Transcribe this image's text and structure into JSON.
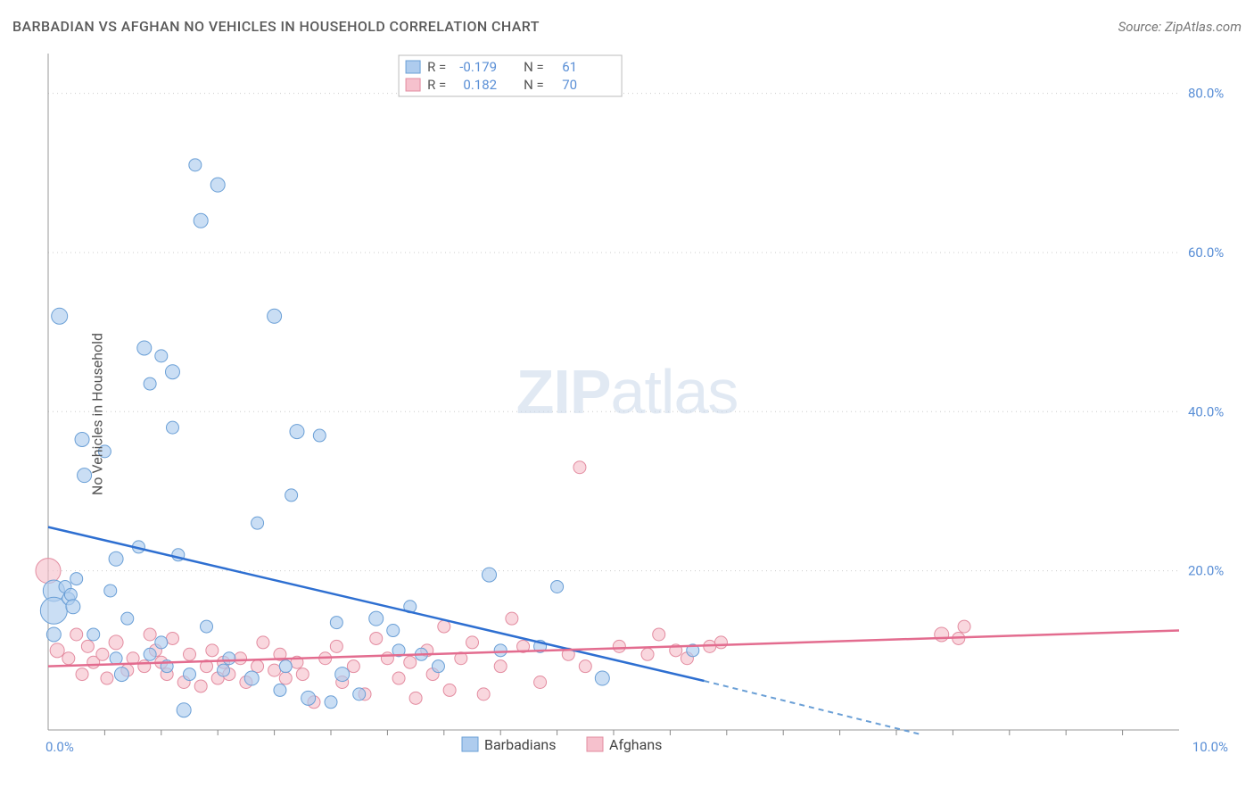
{
  "title": "BARBADIAN VS AFGHAN NO VEHICLES IN HOUSEHOLD CORRELATION CHART",
  "source": "Source: ZipAtlas.com",
  "ylabel": "No Vehicles in Household",
  "watermark_bold": "ZIP",
  "watermark_light": "atlas",
  "chart": {
    "type": "scatter",
    "background_color": "#ffffff",
    "plot_border_color": "#999999",
    "grid_color": "#cccccc",
    "tick_label_color": "#5a8fd6",
    "tick_fontsize": 15,
    "title_fontsize": 16,
    "ylabel_fontsize": 16,
    "xlim": [
      0,
      10
    ],
    "ylim": [
      0,
      85
    ],
    "ytick_values": [
      20,
      40,
      60,
      80
    ],
    "ytick_labels": [
      "20.0%",
      "40.0%",
      "60.0%",
      "80.0%"
    ],
    "x_corner_labels": [
      "0.0%",
      "10.0%"
    ],
    "xtick_minor": [
      0.5,
      1.0,
      1.5,
      2.0,
      2.5,
      3.0,
      3.5,
      4.0,
      4.5,
      5.0,
      5.5,
      6.0,
      6.5,
      7.0,
      7.5,
      8.0,
      8.5,
      9.0,
      9.5
    ],
    "series": [
      {
        "key": "barbadians",
        "label": "Barbadians",
        "marker_fill": "#aeccee",
        "marker_stroke": "#6a9fd6",
        "trend_color": "#2e6fd1",
        "trend": {
          "x1": 0,
          "y1": 25.5,
          "x2": 6.0,
          "y2": 5.5,
          "x_solid_end": 5.8,
          "x_dash_end": 7.7,
          "y_dash_end": -0.5
        },
        "R": "-0.179",
        "N": "61",
        "points": [
          {
            "x": 0.05,
            "y": 17.5,
            "r": 12
          },
          {
            "x": 0.05,
            "y": 15.0,
            "r": 15
          },
          {
            "x": 0.05,
            "y": 12.0,
            "r": 8
          },
          {
            "x": 0.1,
            "y": 52.0,
            "r": 9
          },
          {
            "x": 0.15,
            "y": 18.0,
            "r": 7
          },
          {
            "x": 0.18,
            "y": 16.5,
            "r": 7
          },
          {
            "x": 0.2,
            "y": 17.0,
            "r": 7
          },
          {
            "x": 0.22,
            "y": 15.5,
            "r": 8
          },
          {
            "x": 0.25,
            "y": 19.0,
            "r": 7
          },
          {
            "x": 0.3,
            "y": 36.5,
            "r": 8
          },
          {
            "x": 0.32,
            "y": 32.0,
            "r": 8
          },
          {
            "x": 0.4,
            "y": 12.0,
            "r": 7
          },
          {
            "x": 0.5,
            "y": 35.0,
            "r": 7
          },
          {
            "x": 0.55,
            "y": 17.5,
            "r": 7
          },
          {
            "x": 0.6,
            "y": 9.0,
            "r": 7
          },
          {
            "x": 0.6,
            "y": 21.5,
            "r": 8
          },
          {
            "x": 0.65,
            "y": 7.0,
            "r": 8
          },
          {
            "x": 0.7,
            "y": 14.0,
            "r": 7
          },
          {
            "x": 0.8,
            "y": 23.0,
            "r": 7
          },
          {
            "x": 0.85,
            "y": 48.0,
            "r": 8
          },
          {
            "x": 0.9,
            "y": 9.5,
            "r": 7
          },
          {
            "x": 0.9,
            "y": 43.5,
            "r": 7
          },
          {
            "x": 1.0,
            "y": 47.0,
            "r": 7
          },
          {
            "x": 1.0,
            "y": 11.0,
            "r": 7
          },
          {
            "x": 1.05,
            "y": 8.0,
            "r": 7
          },
          {
            "x": 1.1,
            "y": 45.0,
            "r": 8
          },
          {
            "x": 1.1,
            "y": 38.0,
            "r": 7
          },
          {
            "x": 1.15,
            "y": 22.0,
            "r": 7
          },
          {
            "x": 1.2,
            "y": 2.5,
            "r": 8
          },
          {
            "x": 1.25,
            "y": 7.0,
            "r": 7
          },
          {
            "x": 1.3,
            "y": 71.0,
            "r": 7
          },
          {
            "x": 1.35,
            "y": 64.0,
            "r": 8
          },
          {
            "x": 1.4,
            "y": 13.0,
            "r": 7
          },
          {
            "x": 1.5,
            "y": 68.5,
            "r": 8
          },
          {
            "x": 1.55,
            "y": 7.5,
            "r": 7
          },
          {
            "x": 1.6,
            "y": 9.0,
            "r": 7
          },
          {
            "x": 1.8,
            "y": 6.5,
            "r": 8
          },
          {
            "x": 1.85,
            "y": 26.0,
            "r": 7
          },
          {
            "x": 2.0,
            "y": 52.0,
            "r": 8
          },
          {
            "x": 2.05,
            "y": 5.0,
            "r": 7
          },
          {
            "x": 2.1,
            "y": 8.0,
            "r": 7
          },
          {
            "x": 2.15,
            "y": 29.5,
            "r": 7
          },
          {
            "x": 2.2,
            "y": 37.5,
            "r": 8
          },
          {
            "x": 2.3,
            "y": 4.0,
            "r": 8
          },
          {
            "x": 2.4,
            "y": 37.0,
            "r": 7
          },
          {
            "x": 2.5,
            "y": 3.5,
            "r": 7
          },
          {
            "x": 2.55,
            "y": 13.5,
            "r": 7
          },
          {
            "x": 2.6,
            "y": 7.0,
            "r": 8
          },
          {
            "x": 2.75,
            "y": 4.5,
            "r": 7
          },
          {
            "x": 2.9,
            "y": 14.0,
            "r": 8
          },
          {
            "x": 3.05,
            "y": 12.5,
            "r": 7
          },
          {
            "x": 3.1,
            "y": 10.0,
            "r": 7
          },
          {
            "x": 3.2,
            "y": 15.5,
            "r": 7
          },
          {
            "x": 3.3,
            "y": 9.5,
            "r": 7
          },
          {
            "x": 3.45,
            "y": 8.0,
            "r": 7
          },
          {
            "x": 3.9,
            "y": 19.5,
            "r": 8
          },
          {
            "x": 4.0,
            "y": 10.0,
            "r": 7
          },
          {
            "x": 4.35,
            "y": 10.5,
            "r": 7
          },
          {
            "x": 4.5,
            "y": 18.0,
            "r": 7
          },
          {
            "x": 4.9,
            "y": 6.5,
            "r": 8
          },
          {
            "x": 5.7,
            "y": 10.0,
            "r": 7
          }
        ]
      },
      {
        "key": "afghans",
        "label": "Afghans",
        "marker_fill": "#f6c1cd",
        "marker_stroke": "#e38ca0",
        "trend_color": "#e36c8f",
        "trend": {
          "x1": 0,
          "y1": 8.0,
          "x2": 10.0,
          "y2": 12.5
        },
        "R": "0.182",
        "N": "70",
        "points": [
          {
            "x": 0.0,
            "y": 20.0,
            "r": 14
          },
          {
            "x": 0.08,
            "y": 10.0,
            "r": 8
          },
          {
            "x": 0.18,
            "y": 9.0,
            "r": 7
          },
          {
            "x": 0.25,
            "y": 12.0,
            "r": 7
          },
          {
            "x": 0.3,
            "y": 7.0,
            "r": 7
          },
          {
            "x": 0.35,
            "y": 10.5,
            "r": 7
          },
          {
            "x": 0.4,
            "y": 8.5,
            "r": 7
          },
          {
            "x": 0.48,
            "y": 9.5,
            "r": 7
          },
          {
            "x": 0.52,
            "y": 6.5,
            "r": 7
          },
          {
            "x": 0.6,
            "y": 11.0,
            "r": 8
          },
          {
            "x": 0.7,
            "y": 7.5,
            "r": 7
          },
          {
            "x": 0.75,
            "y": 9.0,
            "r": 7
          },
          {
            "x": 0.85,
            "y": 8.0,
            "r": 7
          },
          {
            "x": 0.9,
            "y": 12.0,
            "r": 7
          },
          {
            "x": 0.95,
            "y": 10.0,
            "r": 7
          },
          {
            "x": 1.0,
            "y": 8.5,
            "r": 7
          },
          {
            "x": 1.05,
            "y": 7.0,
            "r": 7
          },
          {
            "x": 1.1,
            "y": 11.5,
            "r": 7
          },
          {
            "x": 1.2,
            "y": 6.0,
            "r": 7
          },
          {
            "x": 1.25,
            "y": 9.5,
            "r": 7
          },
          {
            "x": 1.35,
            "y": 5.5,
            "r": 7
          },
          {
            "x": 1.4,
            "y": 8.0,
            "r": 7
          },
          {
            "x": 1.45,
            "y": 10.0,
            "r": 7
          },
          {
            "x": 1.5,
            "y": 6.5,
            "r": 7
          },
          {
            "x": 1.55,
            "y": 8.5,
            "r": 7
          },
          {
            "x": 1.6,
            "y": 7.0,
            "r": 7
          },
          {
            "x": 1.7,
            "y": 9.0,
            "r": 7
          },
          {
            "x": 1.75,
            "y": 6.0,
            "r": 7
          },
          {
            "x": 1.85,
            "y": 8.0,
            "r": 7
          },
          {
            "x": 1.9,
            "y": 11.0,
            "r": 7
          },
          {
            "x": 2.0,
            "y": 7.5,
            "r": 7
          },
          {
            "x": 2.05,
            "y": 9.5,
            "r": 7
          },
          {
            "x": 2.1,
            "y": 6.5,
            "r": 7
          },
          {
            "x": 2.2,
            "y": 8.5,
            "r": 7
          },
          {
            "x": 2.25,
            "y": 7.0,
            "r": 7
          },
          {
            "x": 2.35,
            "y": 3.5,
            "r": 7
          },
          {
            "x": 2.45,
            "y": 9.0,
            "r": 7
          },
          {
            "x": 2.55,
            "y": 10.5,
            "r": 7
          },
          {
            "x": 2.6,
            "y": 6.0,
            "r": 7
          },
          {
            "x": 2.7,
            "y": 8.0,
            "r": 7
          },
          {
            "x": 2.8,
            "y": 4.5,
            "r": 7
          },
          {
            "x": 2.9,
            "y": 11.5,
            "r": 7
          },
          {
            "x": 3.0,
            "y": 9.0,
            "r": 7
          },
          {
            "x": 3.1,
            "y": 6.5,
            "r": 7
          },
          {
            "x": 3.2,
            "y": 8.5,
            "r": 7
          },
          {
            "x": 3.25,
            "y": 4.0,
            "r": 7
          },
          {
            "x": 3.35,
            "y": 10.0,
            "r": 7
          },
          {
            "x": 3.4,
            "y": 7.0,
            "r": 7
          },
          {
            "x": 3.5,
            "y": 13.0,
            "r": 7
          },
          {
            "x": 3.55,
            "y": 5.0,
            "r": 7
          },
          {
            "x": 3.65,
            "y": 9.0,
            "r": 7
          },
          {
            "x": 3.75,
            "y": 11.0,
            "r": 7
          },
          {
            "x": 3.85,
            "y": 4.5,
            "r": 7
          },
          {
            "x": 4.0,
            "y": 8.0,
            "r": 7
          },
          {
            "x": 4.1,
            "y": 14.0,
            "r": 7
          },
          {
            "x": 4.2,
            "y": 10.5,
            "r": 7
          },
          {
            "x": 4.35,
            "y": 6.0,
            "r": 7
          },
          {
            "x": 4.6,
            "y": 9.5,
            "r": 7
          },
          {
            "x": 4.7,
            "y": 33.0,
            "r": 7
          },
          {
            "x": 4.75,
            "y": 8.0,
            "r": 7
          },
          {
            "x": 5.05,
            "y": 10.5,
            "r": 7
          },
          {
            "x": 5.3,
            "y": 9.5,
            "r": 7
          },
          {
            "x": 5.4,
            "y": 12.0,
            "r": 7
          },
          {
            "x": 5.55,
            "y": 10.0,
            "r": 7
          },
          {
            "x": 5.65,
            "y": 9.0,
            "r": 7
          },
          {
            "x": 5.85,
            "y": 10.5,
            "r": 7
          },
          {
            "x": 5.95,
            "y": 11.0,
            "r": 7
          },
          {
            "x": 7.9,
            "y": 12.0,
            "r": 8
          },
          {
            "x": 8.05,
            "y": 11.5,
            "r": 7
          },
          {
            "x": 8.1,
            "y": 13.0,
            "r": 7
          }
        ]
      }
    ],
    "legend_top": {
      "R_label": "R =",
      "N_label": "N ="
    }
  }
}
